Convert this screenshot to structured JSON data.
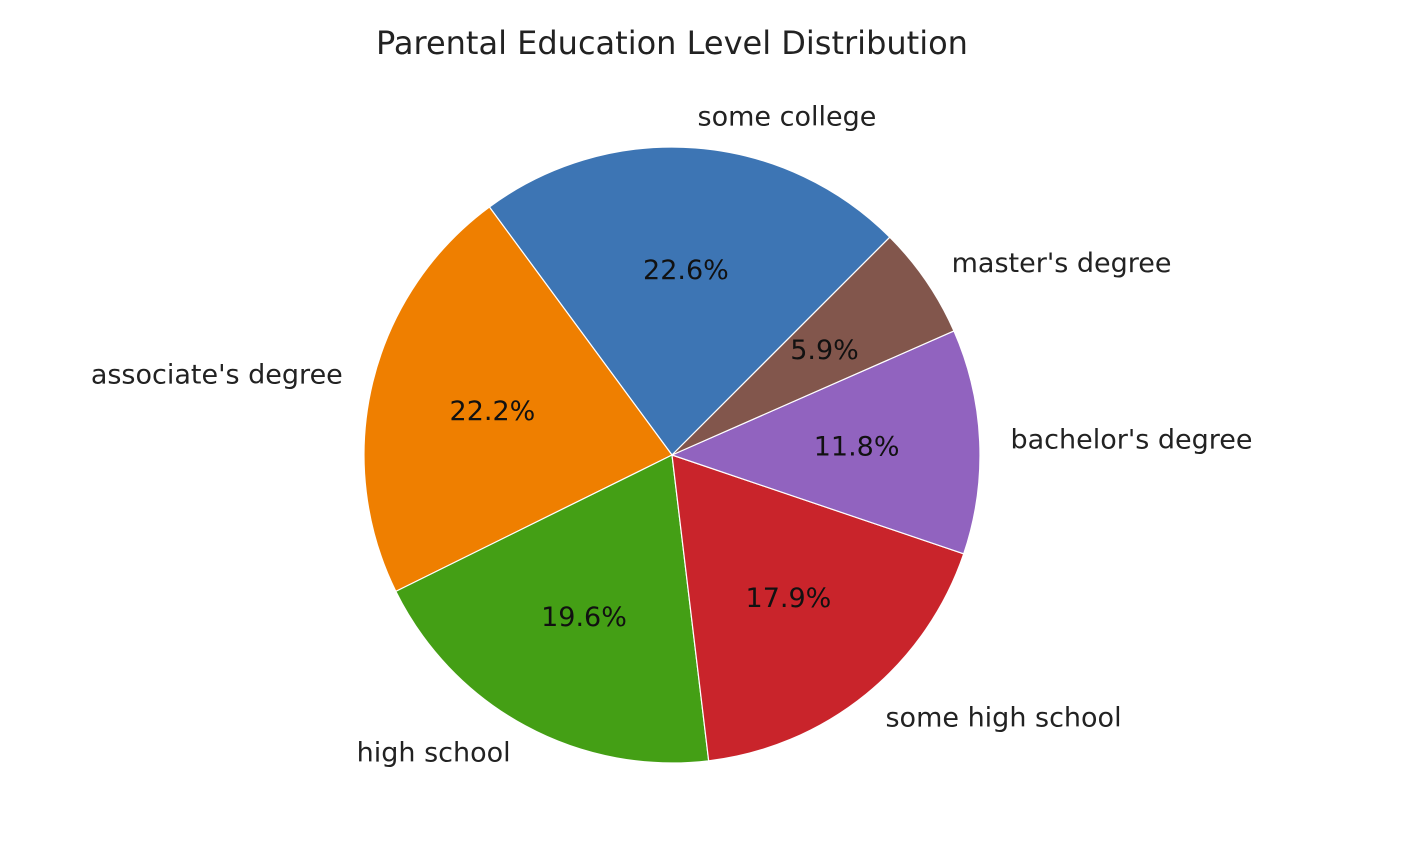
{
  "chart_data": {
    "type": "pie",
    "title": "Parental Education Level Distribution",
    "start_angle_deg": 45,
    "direction": "counterclockwise",
    "slices": [
      {
        "label": "some college",
        "percent": 22.6,
        "percent_label": "22.6%",
        "color": "#3d75b4"
      },
      {
        "label": "associate's degree",
        "percent": 22.2,
        "percent_label": "22.2%",
        "color": "#ef7f00"
      },
      {
        "label": "high school",
        "percent": 19.6,
        "percent_label": "19.6%",
        "color": "#449f15"
      },
      {
        "label": "some high school",
        "percent": 17.9,
        "percent_label": "17.9%",
        "color": "#c9242b"
      },
      {
        "label": "bachelor's degree",
        "percent": 11.8,
        "percent_label": "11.8%",
        "color": "#9163bf"
      },
      {
        "label": "master's degree",
        "percent": 5.9,
        "percent_label": "5.9%",
        "color": "#82564c"
      }
    ]
  }
}
